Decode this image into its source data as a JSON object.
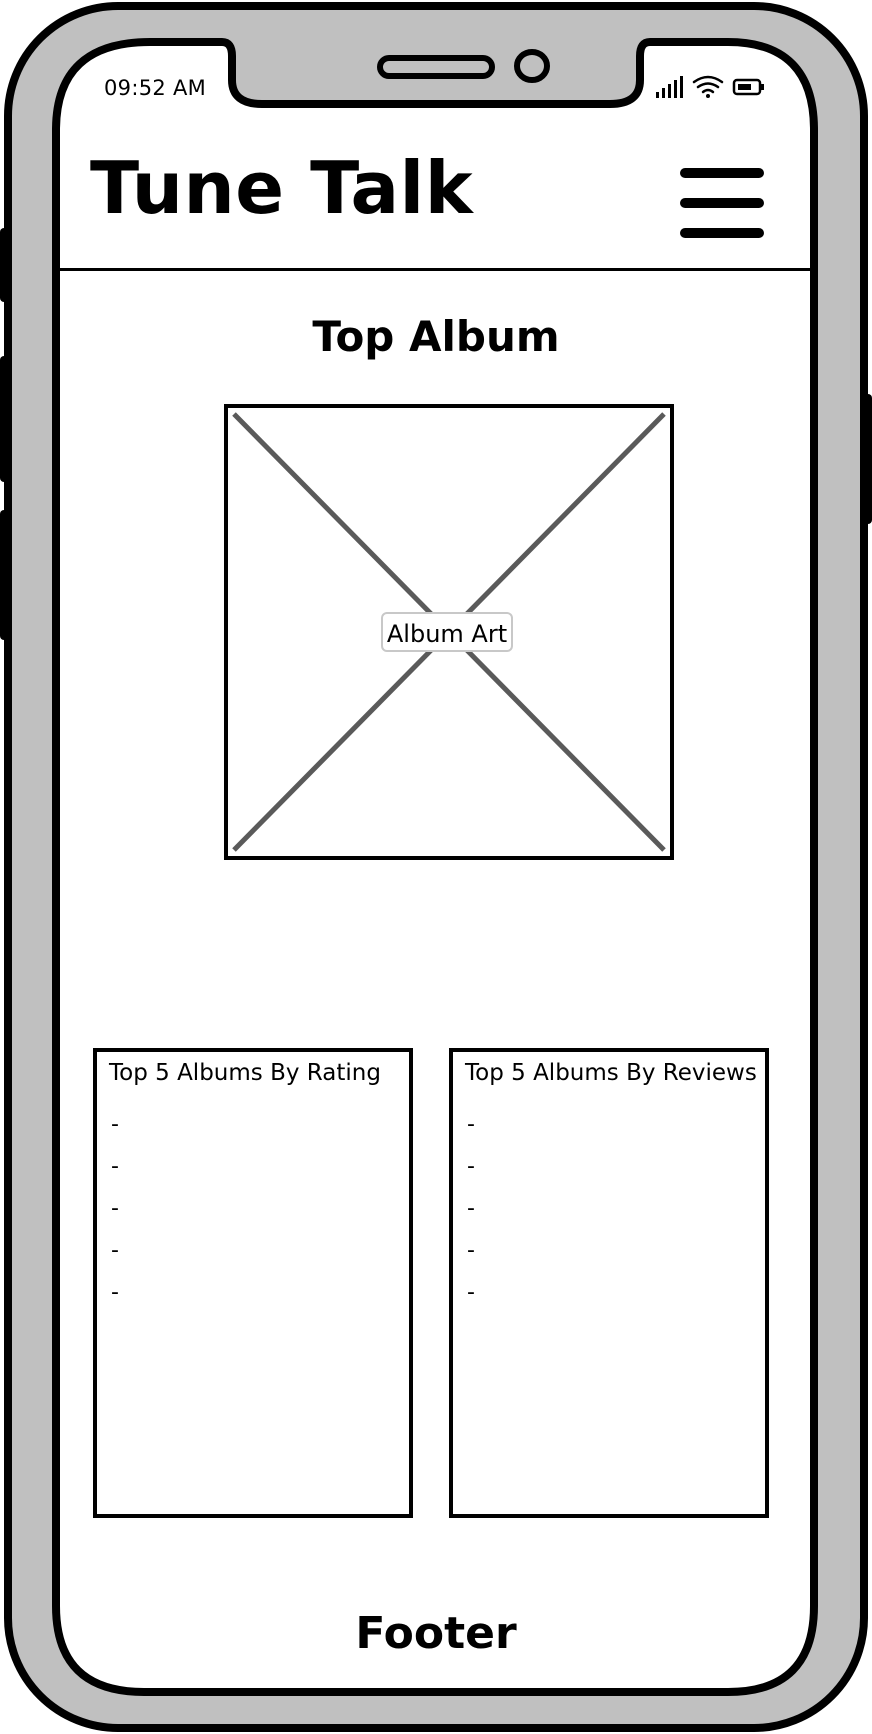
{
  "status_bar": {
    "time": "09:52 AM",
    "icons": [
      "signal-icon",
      "wifi-icon",
      "battery-icon"
    ]
  },
  "header": {
    "title": "Tune Talk",
    "menu_icon": "hamburger-menu-icon"
  },
  "main": {
    "section_title": "Top Album",
    "album_art_label": "Album Art",
    "lists": [
      {
        "title": "Top 5 Albums By Rating",
        "items": [
          "-",
          "-",
          "-",
          "-",
          "-"
        ]
      },
      {
        "title": "Top 5 Albums By Reviews",
        "items": [
          "-",
          "-",
          "-",
          "-",
          "-"
        ]
      }
    ]
  },
  "footer": {
    "label": "Footer"
  },
  "colors": {
    "frame": "#c0c0c0",
    "outline": "#000000",
    "placeholder_cross": "#5a5a5a",
    "label_border": "#c8c8c8"
  }
}
